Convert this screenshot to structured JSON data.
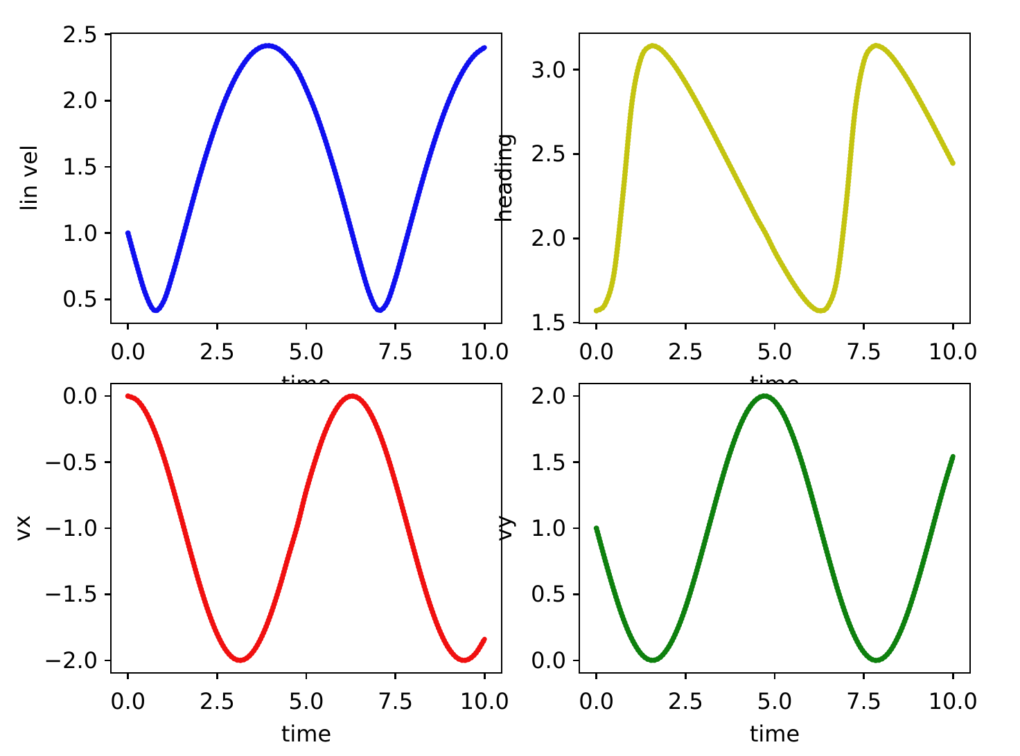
{
  "figure": {
    "background": "#ffffff",
    "text_color": "#000000",
    "spine_color": "#000000"
  },
  "chart_data": [
    {
      "id": "lin-vel",
      "type": "line",
      "title": "",
      "legend": null,
      "grid": false,
      "xlabel": "time",
      "ylabel": "lin vel",
      "color": "#1010f0",
      "xlim": [
        -0.5,
        10.5
      ],
      "ylim": [
        0.314,
        2.514
      ],
      "xticks": {
        "values": [
          0,
          2.5,
          5,
          7.5,
          10
        ],
        "labels": [
          "0.0",
          "2.5",
          "5.0",
          "7.5",
          "10.0"
        ]
      },
      "yticks": {
        "values": [
          0.5,
          1.0,
          1.5,
          2.0,
          2.5
        ],
        "labels": [
          "0.5",
          "1.0",
          "1.5",
          "2.0",
          "2.5"
        ]
      },
      "x": [
        0,
        0.25,
        0.5,
        0.75,
        1,
        1.25,
        1.5,
        1.75,
        2,
        2.25,
        2.5,
        2.75,
        3,
        3.25,
        3.5,
        3.75,
        4,
        4.25,
        4.5,
        4.75,
        5,
        5.25,
        5.5,
        5.75,
        6,
        6.25,
        6.5,
        6.75,
        7,
        7.25,
        7.5,
        7.75,
        8,
        8.25,
        8.5,
        8.75,
        9,
        9.25,
        9.5,
        9.75,
        10
      ],
      "y": [
        1.0,
        0.754,
        0.535,
        0.416,
        0.486,
        0.687,
        0.929,
        1.178,
        1.419,
        1.643,
        1.845,
        2.021,
        2.167,
        2.281,
        2.362,
        2.406,
        2.413,
        2.384,
        2.318,
        2.228,
        2.086,
        1.922,
        1.73,
        1.514,
        1.28,
        1.033,
        0.785,
        0.56,
        0.422,
        0.467,
        0.656,
        0.897,
        1.146,
        1.388,
        1.615,
        1.82,
        1.999,
        2.15,
        2.268,
        2.352,
        2.401
      ]
    },
    {
      "id": "heading",
      "type": "line",
      "title": "",
      "legend": null,
      "grid": false,
      "xlabel": "time",
      "ylabel": "heading",
      "color": "#c4c411",
      "xlim": [
        -0.5,
        10.5
      ],
      "ylim": [
        1.4923,
        3.2201
      ],
      "xticks": {
        "values": [
          0,
          2.5,
          5,
          7.5,
          10
        ],
        "labels": [
          "0.0",
          "2.5",
          "5.0",
          "7.5",
          "10.0"
        ]
      },
      "yticks": {
        "values": [
          1.5,
          2.0,
          2.5,
          3.0
        ],
        "labels": [
          "1.5",
          "2.0",
          "2.5",
          "3.0"
        ]
      },
      "x": [
        0,
        0.25,
        0.5,
        0.75,
        1,
        1.25,
        1.5,
        1.75,
        2,
        2.25,
        2.5,
        2.75,
        3,
        3.25,
        3.5,
        3.75,
        4,
        4.25,
        4.5,
        4.75,
        5,
        5.25,
        5.5,
        5.75,
        6,
        6.25,
        6.5,
        6.75,
        7,
        7.25,
        7.5,
        7.75,
        8,
        8.25,
        8.5,
        8.75,
        9,
        9.25,
        9.5,
        9.75,
        10
      ],
      "y": [
        1.571,
        1.612,
        1.801,
        2.271,
        2.811,
        3.067,
        3.138,
        3.128,
        3.077,
        3.006,
        2.922,
        2.831,
        2.734,
        2.634,
        2.532,
        2.429,
        2.326,
        2.223,
        2.12,
        2.027,
        1.921,
        1.827,
        1.74,
        1.663,
        1.602,
        1.571,
        1.6,
        1.763,
        2.193,
        2.753,
        3.047,
        3.136,
        3.132,
        3.086,
        3.016,
        2.934,
        2.843,
        2.747,
        2.648,
        2.546,
        2.444
      ]
    },
    {
      "id": "vx",
      "type": "line",
      "title": "",
      "legend": null,
      "grid": false,
      "xlabel": "time",
      "ylabel": "vx",
      "color": "#f01010",
      "xlim": [
        -0.5,
        10.5
      ],
      "ylim": [
        -2.1,
        0.1
      ],
      "xticks": {
        "values": [
          0,
          2.5,
          5,
          7.5,
          10
        ],
        "labels": [
          "0.0",
          "2.5",
          "5.0",
          "7.5",
          "10.0"
        ]
      },
      "yticks": {
        "values": [
          0.0,
          -0.5,
          -1.0,
          -1.5,
          -2.0
        ],
        "labels": [
          "0.0",
          "−0.5",
          "−1.0",
          "−1.5",
          "−2.0"
        ]
      },
      "x": [
        0,
        0.25,
        0.5,
        0.75,
        1,
        1.25,
        1.5,
        1.75,
        2,
        2.25,
        2.5,
        2.75,
        3,
        3.25,
        3.5,
        3.75,
        4,
        4.25,
        4.5,
        4.75,
        5,
        5.25,
        5.5,
        5.75,
        6,
        6.25,
        6.5,
        6.75,
        7,
        7.25,
        7.5,
        7.75,
        8,
        8.25,
        8.5,
        8.75,
        9,
        9.25,
        9.5,
        9.75,
        10
      ],
      "y": [
        0.0,
        -0.031,
        -0.122,
        -0.268,
        -0.46,
        -0.685,
        -0.929,
        -1.178,
        -1.416,
        -1.628,
        -1.801,
        -1.924,
        -1.99,
        -1.994,
        -1.937,
        -1.821,
        -1.654,
        -1.446,
        -1.211,
        -0.982,
        -0.716,
        -0.488,
        -0.291,
        -0.139,
        -0.04,
        -0.001,
        -0.023,
        -0.107,
        -0.246,
        -0.432,
        -0.653,
        -0.897,
        -1.146,
        -1.386,
        -1.602,
        -1.781,
        -1.911,
        -1.985,
        -1.997,
        -1.947,
        -1.839
      ]
    },
    {
      "id": "vy",
      "type": "line",
      "title": "",
      "legend": null,
      "grid": false,
      "xlabel": "time",
      "ylabel": "vy",
      "color": "#0e800e",
      "xlim": [
        -0.5,
        10.5
      ],
      "ylim": [
        -0.1,
        2.1
      ],
      "xticks": {
        "values": [
          0,
          2.5,
          5,
          7.5,
          10
        ],
        "labels": [
          "0.0",
          "2.5",
          "5.0",
          "7.5",
          "10.0"
        ]
      },
      "yticks": {
        "values": [
          0.0,
          0.5,
          1.0,
          1.5,
          2.0
        ],
        "labels": [
          "0.0",
          "0.5",
          "1.0",
          "1.5",
          "2.0"
        ]
      },
      "x": [
        0,
        0.25,
        0.5,
        0.75,
        1,
        1.25,
        1.5,
        1.75,
        2,
        2.25,
        2.5,
        2.75,
        3,
        3.25,
        3.5,
        3.75,
        4,
        4.25,
        4.5,
        4.75,
        5,
        5.25,
        5.5,
        5.75,
        6,
        6.25,
        6.5,
        6.75,
        7,
        7.25,
        7.5,
        7.75,
        8,
        8.25,
        8.5,
        8.75,
        9,
        9.25,
        9.5,
        9.75,
        10
      ],
      "y": [
        1.0,
        0.753,
        0.521,
        0.318,
        0.158,
        0.051,
        0.003,
        0.016,
        0.091,
        0.222,
        0.401,
        0.618,
        0.859,
        1.108,
        1.351,
        1.572,
        1.757,
        1.895,
        1.977,
        2.0,
        1.959,
        1.859,
        1.705,
        1.508,
        1.279,
        1.033,
        0.785,
        0.55,
        0.343,
        0.177,
        0.062,
        0.005,
        0.011,
        0.077,
        0.202,
        0.375,
        0.588,
        0.826,
        1.075,
        1.32,
        1.544
      ]
    }
  ]
}
